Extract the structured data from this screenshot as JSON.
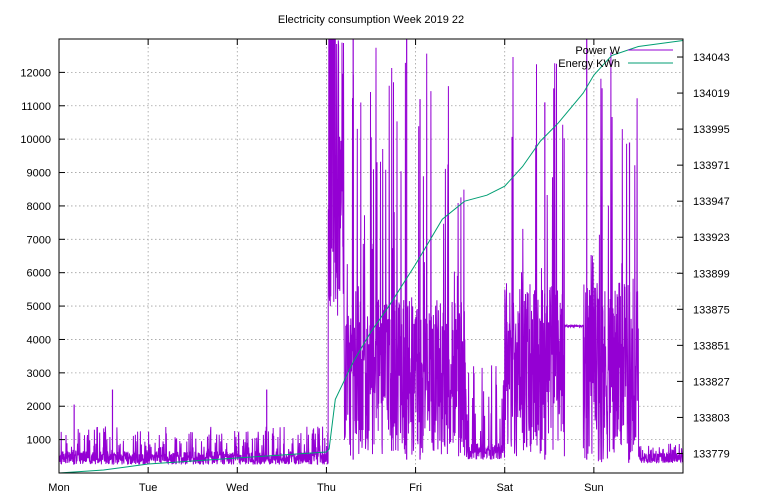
{
  "chart_data": {
    "type": "line",
    "title": "Electricity consumption Week 2019 22",
    "xlabel": "",
    "ylabel": "",
    "y2label": "",
    "grid": true,
    "legend_position": "top-right",
    "x_ticks": [
      "Mon",
      "Tue",
      "Wed",
      "Thu",
      "Fri",
      "Sat",
      "Sun"
    ],
    "x_range_days": [
      0,
      7
    ],
    "ylim": [
      0,
      13000
    ],
    "y_ticks": [
      1000,
      2000,
      3000,
      4000,
      5000,
      6000,
      7000,
      8000,
      9000,
      10000,
      11000,
      12000
    ],
    "y2lim": [
      133766,
      134055
    ],
    "y2_ticks": [
      133779,
      133803,
      133827,
      133851,
      133875,
      133899,
      133923,
      133947,
      133971,
      133995,
      134019,
      134043
    ],
    "series": [
      {
        "name": "Power W",
        "axis": "y",
        "color": "#9400d3",
        "style": "noisy-line",
        "segments": [
          {
            "x0": 0.0,
            "x1": 3.02,
            "base_min": 250,
            "base_max": 650,
            "spike_max": 1400,
            "spike_rate": 0.12
          },
          {
            "x0": 3.02,
            "x1": 3.1,
            "base_min": 4500,
            "base_max": 13000,
            "spike_max": 13000,
            "spike_rate": 0.5
          },
          {
            "x0": 3.1,
            "x1": 3.2,
            "base_min": 4500,
            "base_max": 10000,
            "spike_max": 13000,
            "spike_rate": 0.25
          },
          {
            "x0": 3.2,
            "x1": 4.57,
            "base_min": 500,
            "base_max": 5200,
            "spike_max": 13000,
            "spike_rate": 0.08
          },
          {
            "x0": 4.57,
            "x1": 5.0,
            "base_min": 400,
            "base_max": 900,
            "spike_max": 3500,
            "spike_rate": 0.15
          },
          {
            "x0": 5.0,
            "x1": 5.67,
            "base_min": 500,
            "base_max": 5700,
            "spike_max": 13000,
            "spike_rate": 0.07
          },
          {
            "x0": 5.67,
            "x1": 5.88,
            "base_min": 4400,
            "base_max": 4400,
            "spike_max": 4400,
            "spike_rate": 0.0
          },
          {
            "x0": 5.88,
            "x1": 6.5,
            "base_min": 300,
            "base_max": 5700,
            "spike_max": 13000,
            "spike_rate": 0.06
          },
          {
            "x0": 6.5,
            "x1": 7.0,
            "base_min": 300,
            "base_max": 600,
            "spike_max": 900,
            "spike_rate": 0.1
          }
        ],
        "notable_spikes": [
          {
            "x": 0.17,
            "y": 2050
          },
          {
            "x": 0.6,
            "y": 2500
          },
          {
            "x": 2.33,
            "y": 2500
          },
          {
            "x": 3.3,
            "y": 13000
          },
          {
            "x": 3.9,
            "y": 13000
          },
          {
            "x": 4.05,
            "y": 11200
          },
          {
            "x": 5.45,
            "y": 11100
          },
          {
            "x": 5.92,
            "y": 13000
          },
          {
            "x": 6.4,
            "y": 9900
          }
        ]
      },
      {
        "name": "Energy KWh",
        "axis": "y2",
        "color": "#009e73",
        "style": "line",
        "points": [
          [
            0.0,
            133766
          ],
          [
            0.5,
            133768
          ],
          [
            1.0,
            133772
          ],
          [
            1.5,
            133774
          ],
          [
            2.0,
            133776
          ],
          [
            2.5,
            133778
          ],
          [
            3.0,
            133780
          ],
          [
            3.03,
            133782
          ],
          [
            3.1,
            133815
          ],
          [
            3.3,
            133840
          ],
          [
            3.5,
            133860
          ],
          [
            3.7,
            133877
          ],
          [
            4.0,
            133905
          ],
          [
            4.3,
            133935
          ],
          [
            4.55,
            133947
          ],
          [
            4.8,
            133951
          ],
          [
            5.0,
            133957
          ],
          [
            5.2,
            133970
          ],
          [
            5.4,
            133987
          ],
          [
            5.6,
            133999
          ],
          [
            5.88,
            134019
          ],
          [
            6.0,
            134031
          ],
          [
            6.2,
            134044
          ],
          [
            6.5,
            134050
          ],
          [
            7.0,
            134054
          ]
        ]
      }
    ]
  }
}
